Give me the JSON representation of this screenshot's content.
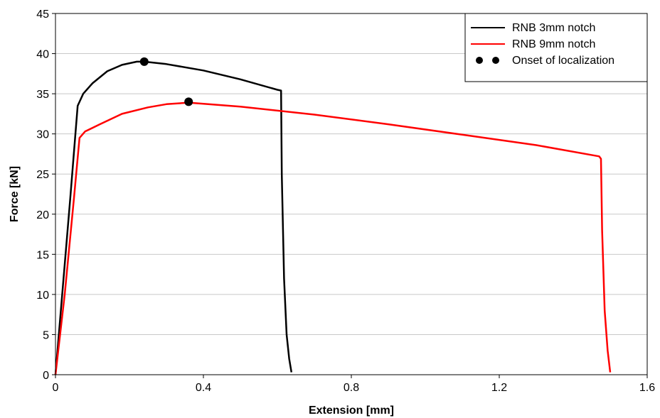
{
  "chart_data": {
    "type": "line",
    "xlabel": "Extension [mm]",
    "ylabel": "Force [kN]",
    "xlim": [
      0,
      1.6
    ],
    "ylim": [
      0,
      45
    ],
    "x_ticks": [
      0,
      0.4,
      0.8,
      1.2,
      1.6
    ],
    "x_tick_labels": [
      "0",
      "0.4",
      "0.8",
      "1.2",
      "1.6"
    ],
    "y_ticks": [
      0,
      5,
      10,
      15,
      20,
      25,
      30,
      35,
      40,
      45
    ],
    "y_tick_labels": [
      "0",
      "5",
      "10",
      "15",
      "20",
      "25",
      "30",
      "35",
      "40",
      "45"
    ],
    "grid": "horizontal",
    "legend_position": "top-right",
    "series": [
      {
        "name": "RNB 3mm notch",
        "color": "#000000",
        "x": [
          0,
          0.02,
          0.04,
          0.06,
          0.075,
          0.1,
          0.14,
          0.18,
          0.22,
          0.24,
          0.3,
          0.4,
          0.5,
          0.6,
          0.61,
          0.612,
          0.618,
          0.625,
          0.632,
          0.638
        ],
        "y": [
          0,
          11,
          22,
          33.5,
          35,
          36.3,
          37.8,
          38.6,
          39,
          39,
          38.7,
          37.9,
          36.8,
          35.5,
          35.4,
          25,
          12,
          5,
          2,
          0.3
        ]
      },
      {
        "name": "RNB 9mm notch",
        "color": "#ff0000",
        "x": [
          0,
          0.025,
          0.05,
          0.065,
          0.08,
          0.12,
          0.18,
          0.25,
          0.3,
          0.36,
          0.5,
          0.7,
          0.9,
          1.1,
          1.3,
          1.47,
          1.475,
          1.478,
          1.485,
          1.493,
          1.5
        ],
        "y": [
          0,
          10,
          22,
          29.5,
          30.3,
          31.2,
          32.5,
          33.3,
          33.7,
          33.9,
          33.4,
          32.4,
          31.2,
          29.9,
          28.6,
          27.2,
          26.9,
          18,
          8,
          3,
          0.3
        ]
      }
    ],
    "markers": {
      "name": "Onset of localization",
      "color": "#000000",
      "points": [
        {
          "x": 0.24,
          "y": 39
        },
        {
          "x": 0.36,
          "y": 34
        }
      ]
    }
  }
}
